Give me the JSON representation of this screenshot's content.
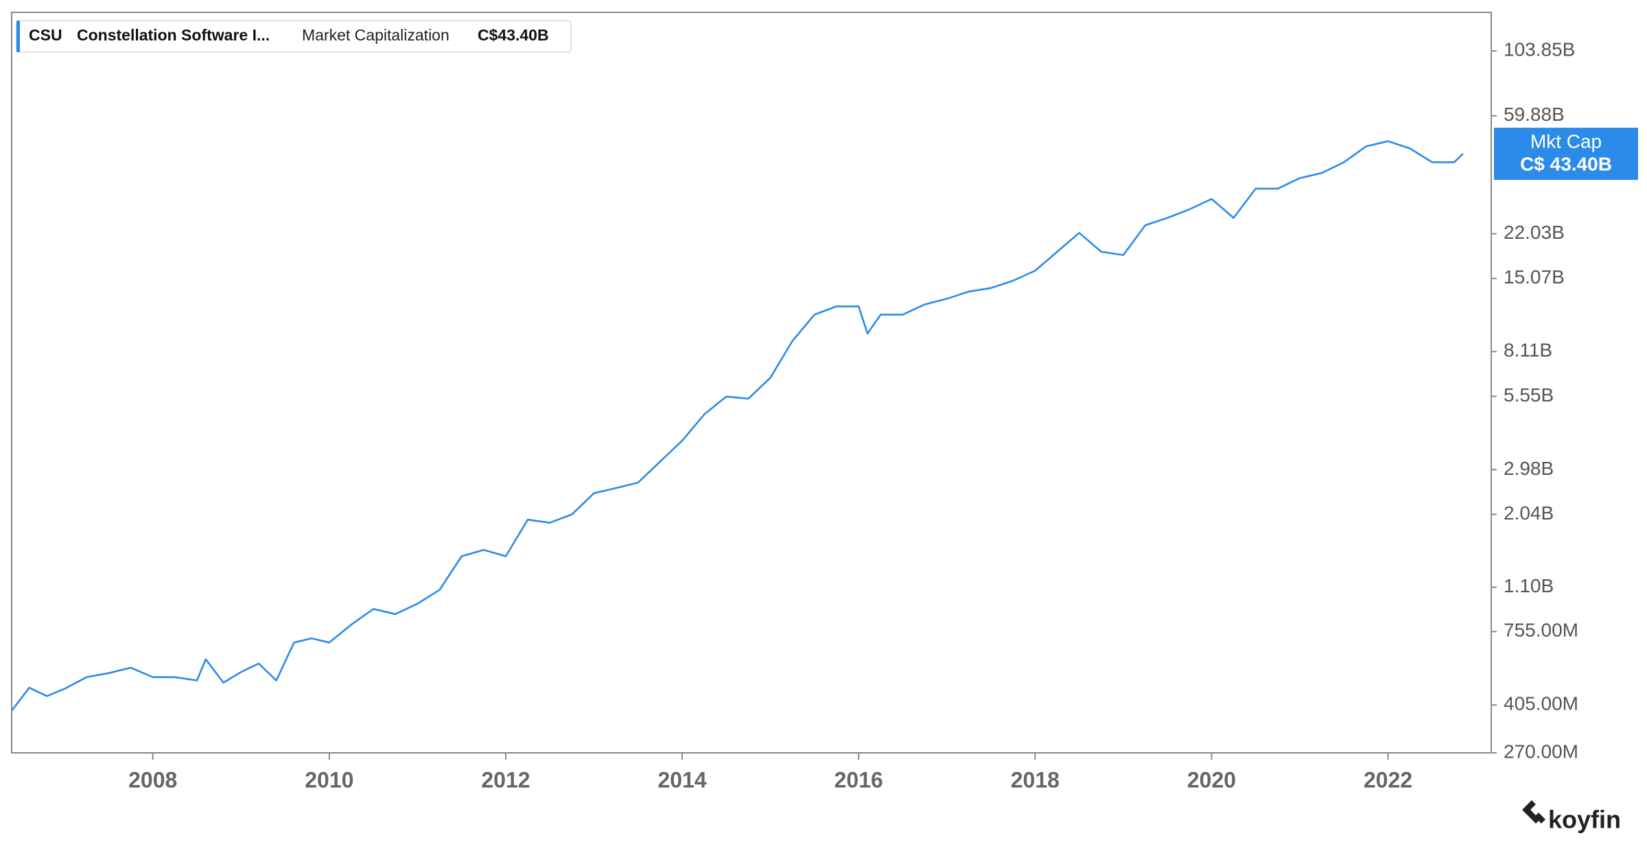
{
  "chart_data": {
    "type": "line",
    "legend": {
      "ticker": "CSU",
      "company": "Constellation Software I...",
      "metric": "Market Capitalization",
      "value": "C$43.40B"
    },
    "last_label": {
      "name": "Mkt Cap",
      "value": "C$ 43.40B"
    },
    "logo": "koyfin",
    "log_scale": true,
    "grid": false,
    "xlim": [
      2006.4,
      2023.17
    ],
    "xticks": [
      2008,
      2010,
      2012,
      2014,
      2016,
      2018,
      2020,
      2022
    ],
    "ylim": [
      270000000,
      144000000000
    ],
    "yticks": [
      {
        "value": 270000000,
        "label": "270.00M"
      },
      {
        "value": 405000000,
        "label": "405.00M"
      },
      {
        "value": 755000000,
        "label": "755.00M"
      },
      {
        "value": 1100000000,
        "label": "1.10B"
      },
      {
        "value": 2040000000,
        "label": "2.04B"
      },
      {
        "value": 2980000000,
        "label": "2.98B"
      },
      {
        "value": 5550000000,
        "label": "5.55B"
      },
      {
        "value": 8110000000,
        "label": "8.11B"
      },
      {
        "value": 15070000000,
        "label": "15.07B"
      },
      {
        "value": 22030000000,
        "label": "22.03B"
      },
      {
        "value": 59880000000,
        "label": "59.88B"
      },
      {
        "value": 103850000000,
        "label": "103.85B"
      }
    ],
    "series": [
      {
        "name": "Market Capitalization",
        "color": "#2a8be8",
        "x": [
          2006.4,
          2006.6,
          2006.8,
          2007.0,
          2007.25,
          2007.5,
          2007.75,
          2008.0,
          2008.25,
          2008.5,
          2008.6,
          2008.8,
          2009.0,
          2009.2,
          2009.4,
          2009.6,
          2009.8,
          2010.0,
          2010.25,
          2010.5,
          2010.75,
          2011.0,
          2011.25,
          2011.5,
          2011.75,
          2012.0,
          2012.25,
          2012.5,
          2012.75,
          2013.0,
          2013.25,
          2013.5,
          2013.75,
          2014.0,
          2014.25,
          2014.5,
          2014.75,
          2015.0,
          2015.25,
          2015.5,
          2015.75,
          2016.0,
          2016.1,
          2016.25,
          2016.5,
          2016.75,
          2017.0,
          2017.25,
          2017.5,
          2017.75,
          2018.0,
          2018.25,
          2018.5,
          2018.75,
          2019.0,
          2019.25,
          2019.5,
          2019.75,
          2020.0,
          2020.25,
          2020.5,
          2020.75,
          2021.0,
          2021.25,
          2021.5,
          2021.75,
          2022.0,
          2022.25,
          2022.5,
          2022.75,
          2022.85
        ],
        "values": [
          386000000,
          469000000,
          437000000,
          465000000,
          513000000,
          531000000,
          556000000,
          513000000,
          513000000,
          499000000,
          597000000,
          490000000,
          536000000,
          576000000,
          499000000,
          688000000,
          713000000,
          688000000,
          801000000,
          915000000,
          876000000,
          957000000,
          1075000000,
          1430000000,
          1510000000,
          1430000000,
          1950000000,
          1900000000,
          2040000000,
          2440000000,
          2550000000,
          2670000000,
          3190000000,
          3810000000,
          4760000000,
          5540000000,
          5440000000,
          6500000000,
          8880000000,
          11100000000,
          11900000000,
          11900000000,
          9450000000,
          11100000000,
          11100000000,
          12100000000,
          12700000000,
          13500000000,
          13900000000,
          14800000000,
          16100000000,
          18900000000,
          22200000000,
          18900000000,
          18400000000,
          23700000000,
          25200000000,
          27100000000,
          29600000000,
          25200000000,
          32300000000,
          32300000000,
          35300000000,
          36900000000,
          40400000000,
          46200000000,
          48300000000,
          45400000000,
          40400000000,
          40400000000,
          43400000000
        ]
      }
    ]
  }
}
